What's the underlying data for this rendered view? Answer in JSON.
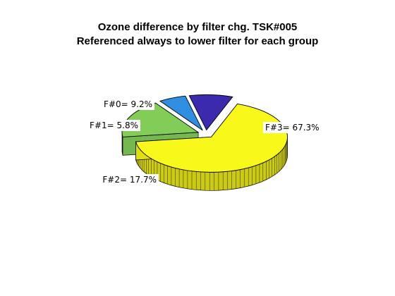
{
  "chart_data": {
    "type": "pie",
    "style": "3d-exploded",
    "title": "Ozone difference by filter chg. TSK#005",
    "subtitle": "Referenced always to lower filter for each group",
    "slices": [
      {
        "label": "F#0= 9.2%",
        "value": 9.2,
        "color": "#3b2aae"
      },
      {
        "label": "F#1= 5.8%",
        "value": 5.8,
        "color": "#2f8ee0"
      },
      {
        "label": "F#2= 17.7%",
        "value": 17.7,
        "color": "#82cc58"
      },
      {
        "label": "F#3= 67.3%",
        "value": 67.3,
        "color": "#f8f81a"
      }
    ]
  }
}
